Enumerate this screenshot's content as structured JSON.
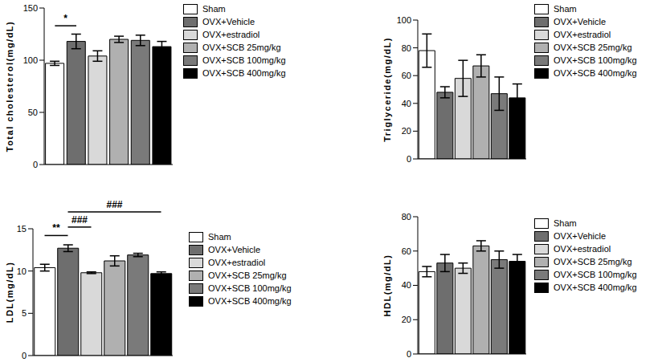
{
  "chart_data": [
    {
      "type": "bar",
      "y_label": "Total cholesterol(mg/dL)",
      "categories": [
        "Sham",
        "OVX+Vehicle",
        "OVX+estradiol",
        "OVX+SCB 25mg/kg",
        "OVX+SCB 100mg/kg",
        "OVX+SCB 400mg/kg"
      ],
      "values": [
        97,
        118,
        104,
        120,
        119,
        113
      ],
      "errors": [
        2,
        7,
        5,
        3,
        5,
        5
      ],
      "colors": [
        "#ffffff",
        "#6e6e6e",
        "#d9d9d9",
        "#b0b0b0",
        "#7a7a7a",
        "#000000"
      ],
      "ylim": [
        0,
        150
      ],
      "yticks": [
        0,
        50,
        100,
        150
      ],
      "tick_labels": "y",
      "legend": "right",
      "annotations": [
        {
          "label": "*",
          "x1": 0,
          "x2": 1,
          "y": 133
        }
      ]
    },
    {
      "type": "bar",
      "y_label": "Triglyceride(mg/dL)",
      "categories": [
        "Sham",
        "OVX+Vehicle",
        "OVX+estradiol",
        "OVX+SCB 25mg/kg",
        "OVX+SCB 100mg/kg",
        "OVX+SCB 400mg/kg"
      ],
      "values": [
        78,
        48,
        58,
        67,
        47,
        44
      ],
      "errors": [
        12,
        4,
        13,
        8,
        12,
        10
      ],
      "colors": [
        "#ffffff",
        "#6e6e6e",
        "#d9d9d9",
        "#b0b0b0",
        "#7a7a7a",
        "#000000"
      ],
      "ylim": [
        0,
        100
      ],
      "yticks": [
        0,
        20,
        40,
        60,
        80,
        100
      ],
      "tick_labels": "y",
      "legend": "right",
      "annotations": []
    },
    {
      "type": "bar",
      "y_label": "LDL(mg/dL)",
      "categories": [
        "Sham",
        "OVX+Vehicle",
        "OVX+estradiol",
        "OVX+SCB 25mg/kg",
        "OVX+SCB 100mg/kg",
        "OVX+SCB 400mg/kg"
      ],
      "values": [
        10.4,
        12.7,
        9.8,
        11.2,
        11.9,
        9.7
      ],
      "errors": [
        0.4,
        0.4,
        0.1,
        0.6,
        0.2,
        0.2
      ],
      "colors": [
        "#ffffff",
        "#6e6e6e",
        "#d9d9d9",
        "#b0b0b0",
        "#7a7a7a",
        "#000000"
      ],
      "ylim": [
        0,
        15
      ],
      "yticks": [
        0,
        5,
        10,
        15
      ],
      "tick_labels": "y",
      "legend": "right",
      "annotations": [
        {
          "label": "**",
          "x1": 0,
          "x2": 1,
          "y": 14.2
        },
        {
          "label": "###",
          "x1": 1,
          "x2": 2,
          "y": 15.2
        },
        {
          "label": "###",
          "x1": 1,
          "x2": 5,
          "y": 17
        }
      ]
    },
    {
      "type": "bar",
      "y_label": "HDL(mg/dL)",
      "categories": [
        "Sham",
        "OVX+Vehicle",
        "OVX+estradiol",
        "OVX+SCB 25mg/kg",
        "OVX+SCB 100mg/kg",
        "OVX+SCB 400mg/kg"
      ],
      "values": [
        48,
        53,
        50,
        63,
        55,
        54
      ],
      "errors": [
        3,
        5,
        3,
        3,
        5,
        4
      ],
      "colors": [
        "#ffffff",
        "#6e6e6e",
        "#d9d9d9",
        "#b0b0b0",
        "#7a7a7a",
        "#000000"
      ],
      "ylim": [
        0,
        80
      ],
      "yticks": [
        0,
        20,
        40,
        60,
        80
      ],
      "tick_labels": "y",
      "legend": "right",
      "annotations": []
    }
  ]
}
